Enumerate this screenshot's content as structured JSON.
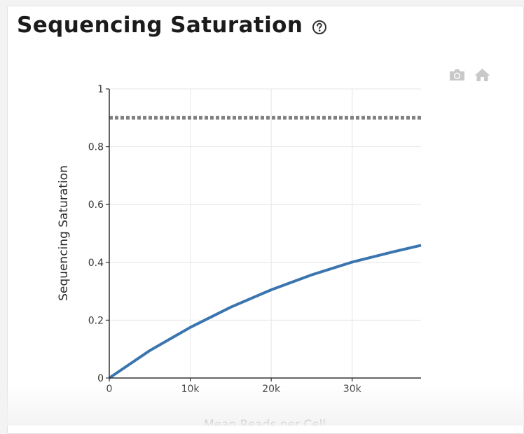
{
  "card": {
    "title": "Sequencing Saturation",
    "help_icon": "question-circle-icon"
  },
  "modebar": {
    "items": [
      {
        "icon": "camera-icon"
      },
      {
        "icon": "home-icon"
      }
    ]
  },
  "chart_data": {
    "type": "line",
    "title": "",
    "xlabel": "Mean Reads per Cell",
    "ylabel": "Sequencing Saturation",
    "xlim": [
      0,
      38500
    ],
    "ylim": [
      0,
      1
    ],
    "x_ticks": [
      0,
      10000,
      20000,
      30000
    ],
    "x_tick_labels": [
      "0",
      "10k",
      "20k",
      "30k"
    ],
    "y_ticks": [
      0,
      0.2,
      0.4,
      0.6,
      0.8,
      1
    ],
    "y_tick_labels": [
      "0",
      "0.2",
      "0.4",
      "0.6",
      "0.8",
      "1"
    ],
    "grid": true,
    "series": [
      {
        "color": "#3a75af",
        "style": "solid",
        "x": [
          0,
          5000,
          10000,
          15000,
          20000,
          25000,
          30000,
          35000,
          38500
        ],
        "y": [
          0,
          0.095,
          0.175,
          0.245,
          0.305,
          0.357,
          0.401,
          0.436,
          0.459
        ]
      },
      {
        "color": "#808080",
        "style": "dotted",
        "x": [
          0,
          38500
        ],
        "y": [
          0.9,
          0.9
        ]
      }
    ]
  },
  "colors": {
    "line": "#3a75af",
    "target": "#808080",
    "grid": "#e6e6e6",
    "axis": "#333333",
    "modebar_icon": "#c9c9c9"
  }
}
